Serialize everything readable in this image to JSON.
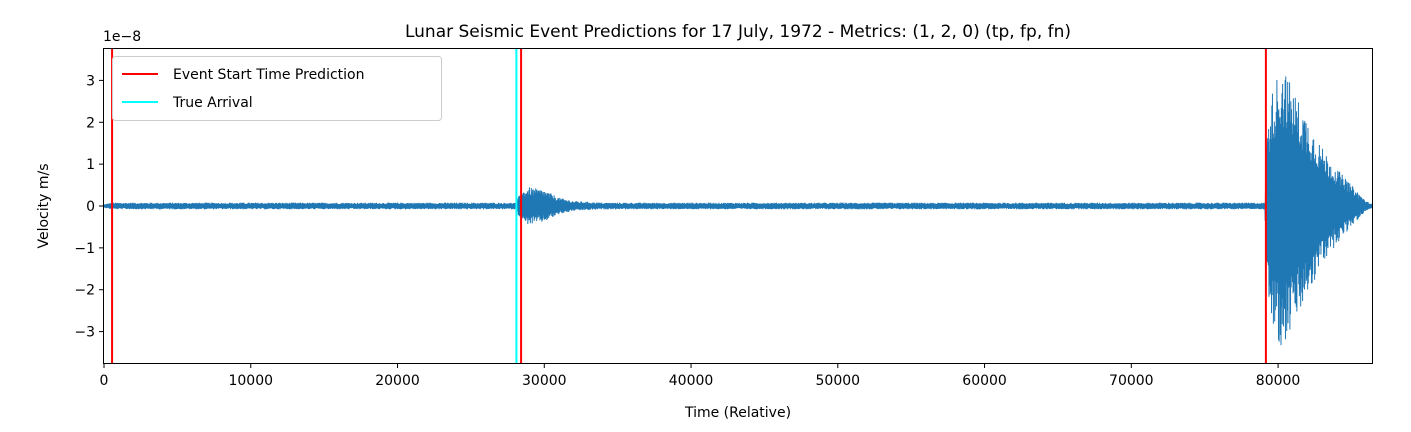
{
  "chart_data": {
    "type": "line",
    "title": "Lunar Seismic Event Predictions for 17 July, 1972 - Metrics: (1, 2, 0) (tp, fp, fn)",
    "xlabel": "Time (Relative)",
    "ylabel": "Velocity m/s",
    "y_offset_label": "1e−8",
    "xlim": [
      0,
      86400
    ],
    "ylim": [
      -3.75,
      3.75
    ],
    "y_scale_factor": 1e-08,
    "x_ticks": [
      0,
      10000,
      20000,
      30000,
      40000,
      50000,
      60000,
      70000,
      80000
    ],
    "x_tick_labels": [
      "0",
      "10000",
      "20000",
      "30000",
      "40000",
      "50000",
      "60000",
      "70000",
      "80000"
    ],
    "y_ticks": [
      -3,
      -2,
      -1,
      0,
      1,
      2,
      3
    ],
    "y_tick_labels": [
      "−3",
      "−2",
      "−1",
      "0",
      "1",
      "2",
      "3"
    ],
    "grid": false,
    "legend_position": "top-left",
    "series": [
      {
        "name": "",
        "kind": "waveform",
        "color": "#1f77b4",
        "envelope": {
          "x": [
            0,
            500,
            28000,
            28200,
            28500,
            29000,
            30000,
            31000,
            32000,
            34000,
            79100,
            79200,
            79500,
            80000,
            80300,
            81000,
            82000,
            83000,
            84000,
            85000,
            86000,
            86400
          ],
          "upper": [
            0.04,
            0.08,
            0.08,
            0.2,
            0.35,
            0.45,
            0.38,
            0.2,
            0.12,
            0.08,
            0.08,
            1.5,
            2.6,
            3.2,
            3.4,
            2.8,
            2.1,
            1.4,
            0.9,
            0.5,
            0.12,
            0.05
          ],
          "lower": [
            -0.04,
            -0.08,
            -0.08,
            -0.2,
            -0.4,
            -0.45,
            -0.38,
            -0.2,
            -0.12,
            -0.08,
            -0.08,
            -1.5,
            -2.7,
            -3.3,
            -3.4,
            -2.9,
            -2.2,
            -1.4,
            -0.9,
            -0.5,
            -0.12,
            -0.05
          ]
        }
      }
    ],
    "vlines": [
      {
        "name": "Event Start Time Prediction",
        "x": 550,
        "color": "#ff0000"
      },
      {
        "name": "True Arrival",
        "x": 28100,
        "color": "#00ffff"
      },
      {
        "name": "Event Start Time Prediction",
        "x": 28420,
        "color": "#ff0000"
      },
      {
        "name": "Event Start Time Prediction",
        "x": 79170,
        "color": "#ff0000"
      }
    ],
    "legend": [
      {
        "label": "Event Start Time Prediction",
        "color": "#ff0000"
      },
      {
        "label": "True Arrival",
        "color": "#00ffff"
      }
    ]
  }
}
